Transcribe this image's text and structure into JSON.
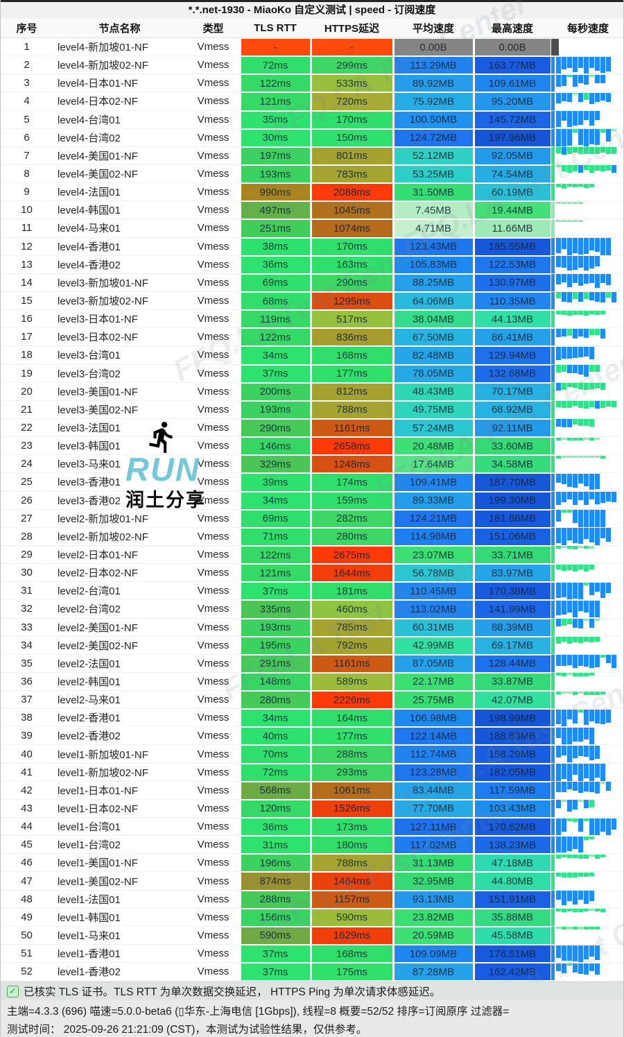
{
  "title": "*.*.net-1930 - MiaoKo 自定义测试 | speed - 订阅速度",
  "columns": [
    "序号",
    "节点名称",
    "类型",
    "TLS RTT",
    "HTTPS延迟",
    "平均速度",
    "最高速度",
    "每秒速度"
  ],
  "rows": [
    {
      "num": "1",
      "name": "level4-新加坡01-NF",
      "type": "Vmess",
      "tls": "-",
      "https": "-",
      "avg": "0.00B",
      "max": "0.00B"
    },
    {
      "num": "2",
      "name": "level4-新加坡02-NF",
      "type": "Vmess",
      "tls": "72ms",
      "https": "299ms",
      "avg": "113.29MB",
      "max": "163.77MB"
    },
    {
      "num": "3",
      "name": "level4-日本01-NF",
      "type": "Vmess",
      "tls": "122ms",
      "https": "533ms",
      "avg": "89.92MB",
      "max": "109.61MB"
    },
    {
      "num": "4",
      "name": "level4-日本02-NF",
      "type": "Vmess",
      "tls": "121ms",
      "https": "720ms",
      "avg": "75.92MB",
      "max": "95.20MB"
    },
    {
      "num": "5",
      "name": "level4-台湾01",
      "type": "Vmess",
      "tls": "35ms",
      "https": "170ms",
      "avg": "100.50MB",
      "max": "145.72MB"
    },
    {
      "num": "6",
      "name": "level4-台湾02",
      "type": "Vmess",
      "tls": "30ms",
      "https": "150ms",
      "avg": "124.72MB",
      "max": "197.96MB"
    },
    {
      "num": "7",
      "name": "level4-美国01-NF",
      "type": "Vmess",
      "tls": "197ms",
      "https": "801ms",
      "avg": "52.12MB",
      "max": "92.05MB"
    },
    {
      "num": "8",
      "name": "level4-美国02-NF",
      "type": "Vmess",
      "tls": "193ms",
      "https": "783ms",
      "avg": "53.25MB",
      "max": "74.54MB"
    },
    {
      "num": "9",
      "name": "level4-法国01",
      "type": "Vmess",
      "tls": "990ms",
      "https": "2088ms",
      "avg": "31.50MB",
      "max": "60.19MB"
    },
    {
      "num": "10",
      "name": "level4-韩国01",
      "type": "Vmess",
      "tls": "497ms",
      "https": "1045ms",
      "avg": "7.45MB",
      "max": "19.44MB"
    },
    {
      "num": "11",
      "name": "level4-马来01",
      "type": "Vmess",
      "tls": "251ms",
      "https": "1074ms",
      "avg": "4.71MB",
      "max": "11.66MB"
    },
    {
      "num": "12",
      "name": "level4-香港01",
      "type": "Vmess",
      "tls": "38ms",
      "https": "170ms",
      "avg": "123.43MB",
      "max": "185.55MB"
    },
    {
      "num": "13",
      "name": "level4-香港02",
      "type": "Vmess",
      "tls": "36ms",
      "https": "163ms",
      "avg": "105.83MB",
      "max": "122.53MB"
    },
    {
      "num": "14",
      "name": "level3-新加坡01-NF",
      "type": "Vmess",
      "tls": "69ms",
      "https": "290ms",
      "avg": "88.25MB",
      "max": "130.97MB"
    },
    {
      "num": "15",
      "name": "level3-新加坡02-NF",
      "type": "Vmess",
      "tls": "68ms",
      "https": "1295ms",
      "avg": "64.06MB",
      "max": "110.35MB"
    },
    {
      "num": "16",
      "name": "level3-日本01-NF",
      "type": "Vmess",
      "tls": "119ms",
      "https": "517ms",
      "avg": "38.04MB",
      "max": "44.13MB"
    },
    {
      "num": "17",
      "name": "level3-日本02-NF",
      "type": "Vmess",
      "tls": "122ms",
      "https": "836ms",
      "avg": "67.50MB",
      "max": "86.41MB"
    },
    {
      "num": "18",
      "name": "level3-台湾01",
      "type": "Vmess",
      "tls": "34ms",
      "https": "168ms",
      "avg": "82.48MB",
      "max": "129.94MB"
    },
    {
      "num": "19",
      "name": "level3-台湾02",
      "type": "Vmess",
      "tls": "37ms",
      "https": "177ms",
      "avg": "78.05MB",
      "max": "132.68MB"
    },
    {
      "num": "20",
      "name": "level3-美国01-NF",
      "type": "Vmess",
      "tls": "200ms",
      "https": "812ms",
      "avg": "48.43MB",
      "max": "70.17MB"
    },
    {
      "num": "21",
      "name": "level3-美国02-NF",
      "type": "Vmess",
      "tls": "193ms",
      "https": "788ms",
      "avg": "49.75MB",
      "max": "68.92MB"
    },
    {
      "num": "22",
      "name": "level3-法国01",
      "type": "Vmess",
      "tls": "290ms",
      "https": "1161ms",
      "avg": "57.24MB",
      "max": "92.11MB"
    },
    {
      "num": "23",
      "name": "level3-韩国01",
      "type": "Vmess",
      "tls": "146ms",
      "https": "2658ms",
      "avg": "20.48MB",
      "max": "33.60MB"
    },
    {
      "num": "24",
      "name": "level3-马来01",
      "type": "Vmess",
      "tls": "329ms",
      "https": "1248ms",
      "avg": "17.64MB",
      "max": "34.58MB"
    },
    {
      "num": "25",
      "name": "level3-香港01",
      "type": "Vmess",
      "tls": "39ms",
      "https": "174ms",
      "avg": "109.41MB",
      "max": "187.70MB"
    },
    {
      "num": "26",
      "name": "level3-香港02",
      "type": "Vmess",
      "tls": "34ms",
      "https": "159ms",
      "avg": "89.33MB",
      "max": "199.30MB"
    },
    {
      "num": "27",
      "name": "level2-新加坡01-NF",
      "type": "Vmess",
      "tls": "69ms",
      "https": "282ms",
      "avg": "124.21MB",
      "max": "181.86MB"
    },
    {
      "num": "28",
      "name": "level2-新加坡02-NF",
      "type": "Vmess",
      "tls": "71ms",
      "https": "280ms",
      "avg": "114.98MB",
      "max": "151.06MB"
    },
    {
      "num": "29",
      "name": "level2-日本01-NF",
      "type": "Vmess",
      "tls": "122ms",
      "https": "2675ms",
      "avg": "23.07MB",
      "max": "33.71MB"
    },
    {
      "num": "30",
      "name": "level2-日本02-NF",
      "type": "Vmess",
      "tls": "121ms",
      "https": "1644ms",
      "avg": "56.78MB",
      "max": "83.97MB"
    },
    {
      "num": "31",
      "name": "level2-台湾01",
      "type": "Vmess",
      "tls": "37ms",
      "https": "181ms",
      "avg": "110.45MB",
      "max": "170.38MB"
    },
    {
      "num": "32",
      "name": "level2-台湾02",
      "type": "Vmess",
      "tls": "335ms",
      "https": "460ms",
      "avg": "113.02MB",
      "max": "141.99MB"
    },
    {
      "num": "33",
      "name": "level2-美国01-NF",
      "type": "Vmess",
      "tls": "193ms",
      "https": "785ms",
      "avg": "60.31MB",
      "max": "88.39MB"
    },
    {
      "num": "34",
      "name": "level2-美国02-NF",
      "type": "Vmess",
      "tls": "195ms",
      "https": "792ms",
      "avg": "42.99MB",
      "max": "69.17MB"
    },
    {
      "num": "35",
      "name": "level2-法国01",
      "type": "Vmess",
      "tls": "291ms",
      "https": "1161ms",
      "avg": "87.05MB",
      "max": "128.44MB"
    },
    {
      "num": "36",
      "name": "level2-韩国01",
      "type": "Vmess",
      "tls": "148ms",
      "https": "589ms",
      "avg": "22.17MB",
      "max": "33.87MB"
    },
    {
      "num": "37",
      "name": "level2-马来01",
      "type": "Vmess",
      "tls": "280ms",
      "https": "2226ms",
      "avg": "25.75MB",
      "max": "42.07MB"
    },
    {
      "num": "38",
      "name": "level2-香港01",
      "type": "Vmess",
      "tls": "34ms",
      "https": "164ms",
      "avg": "106.98MB",
      "max": "198.99MB"
    },
    {
      "num": "39",
      "name": "level2-香港02",
      "type": "Vmess",
      "tls": "40ms",
      "https": "177ms",
      "avg": "122.14MB",
      "max": "188.83MB"
    },
    {
      "num": "40",
      "name": "level1-新加坡01-NF",
      "type": "Vmess",
      "tls": "70ms",
      "https": "288ms",
      "avg": "112.74MB",
      "max": "158.29MB"
    },
    {
      "num": "41",
      "name": "level1-新加坡02-NF",
      "type": "Vmess",
      "tls": "72ms",
      "https": "293ms",
      "avg": "123.28MB",
      "max": "182.05MB"
    },
    {
      "num": "42",
      "name": "level1-日本01-NF",
      "type": "Vmess",
      "tls": "568ms",
      "https": "1061ms",
      "avg": "83.44MB",
      "max": "117.59MB"
    },
    {
      "num": "43",
      "name": "level1-日本02-NF",
      "type": "Vmess",
      "tls": "120ms",
      "https": "1526ms",
      "avg": "77.70MB",
      "max": "103.43MB"
    },
    {
      "num": "44",
      "name": "level1-台湾01",
      "type": "Vmess",
      "tls": "36ms",
      "https": "173ms",
      "avg": "127.11MB",
      "max": "170.62MB"
    },
    {
      "num": "45",
      "name": "level1-台湾02",
      "type": "Vmess",
      "tls": "31ms",
      "https": "180ms",
      "avg": "117.02MB",
      "max": "138.23MB"
    },
    {
      "num": "46",
      "name": "level1-美国01-NF",
      "type": "Vmess",
      "tls": "196ms",
      "https": "788ms",
      "avg": "31.13MB",
      "max": "47.18MB"
    },
    {
      "num": "47",
      "name": "level1-美国02-NF",
      "type": "Vmess",
      "tls": "874ms",
      "https": "1464ms",
      "avg": "32.95MB",
      "max": "44.80MB"
    },
    {
      "num": "48",
      "name": "level1-法国01",
      "type": "Vmess",
      "tls": "288ms",
      "https": "1157ms",
      "avg": "93.13MB",
      "max": "151.91MB"
    },
    {
      "num": "49",
      "name": "level1-韩国01",
      "type": "Vmess",
      "tls": "156ms",
      "https": "590ms",
      "avg": "23.82MB",
      "max": "35.88MB"
    },
    {
      "num": "50",
      "name": "level1-马来01",
      "type": "Vmess",
      "tls": "590ms",
      "https": "1629ms",
      "avg": "20.59MB",
      "max": "45.58MB"
    },
    {
      "num": "51",
      "name": "level1-香港01",
      "type": "Vmess",
      "tls": "37ms",
      "https": "168ms",
      "avg": "109.09MB",
      "max": "176.51MB"
    },
    {
      "num": "52",
      "name": "level1-香港02",
      "type": "Vmess",
      "tls": "37ms",
      "https": "175ms",
      "avg": "87.28MB",
      "max": "162.42MB"
    }
  ],
  "watermark": {
    "runner_icon": "runner-icon",
    "run_text": "RUN",
    "share_text": "润土分享",
    "diagonal_text": "FFQ.LA Test Center"
  },
  "footer": {
    "check_icon": "check-icon",
    "line1": "已核实 TLS 证书。TLS RTT 为单次数据交换延迟， HTTPS Ping 为单次请求体感延迟。",
    "line2": "主端=4.3.3 (696) 喵速=5.0.0-beta6 (▯华东-上海电信 [1Gbps]), 线程=8 概要=52/52 排序=订阅原序 过滤器=",
    "line3": "测试时间： 2025-09-26 21:21:09 (CST)，本测试为试验性结果，仅供参考。"
  },
  "colors": {
    "latency_good": "#2be671",
    "latency_bad": "#ff3a07",
    "fail_red": "#ff4a0e",
    "na_gray": "#858585",
    "bar_blue": "#1e8df2",
    "bar_green": "#2ee487",
    "bar_light_green": "#8deab2",
    "bar_gray": "#4f4f4f"
  }
}
